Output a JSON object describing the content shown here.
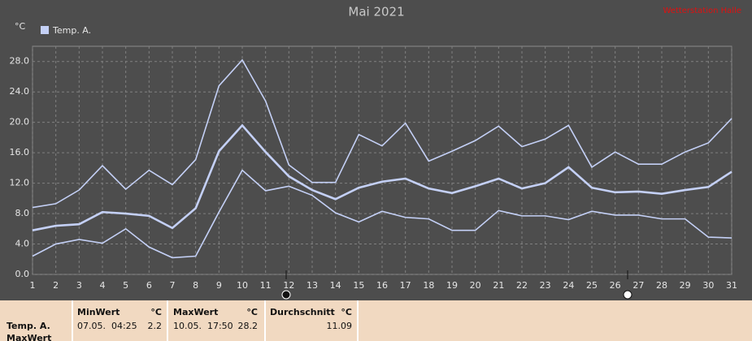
{
  "chart_data": {
    "type": "line",
    "title": "Mai 2021",
    "station": "Wetterstation Halle",
    "y_unit": "°C",
    "x": [
      1,
      2,
      3,
      4,
      5,
      6,
      7,
      8,
      9,
      10,
      11,
      12,
      13,
      14,
      15,
      16,
      17,
      18,
      19,
      20,
      21,
      22,
      23,
      24,
      25,
      26,
      27,
      28,
      29,
      30,
      31
    ],
    "series": [
      {
        "name": "Temp. A.",
        "color": "#c4d0f6",
        "values": [
          5.8,
          6.4,
          6.6,
          8.2,
          8.0,
          7.7,
          6.1,
          8.7,
          16.2,
          19.6,
          16.1,
          12.9,
          11.1,
          9.9,
          11.4,
          12.2,
          12.6,
          11.3,
          10.7,
          11.6,
          12.6,
          11.3,
          12.0,
          14.1,
          11.4,
          10.8,
          10.9,
          10.6,
          11.1,
          11.5,
          13.5
        ],
        "max": [
          8.8,
          9.3,
          11.1,
          14.3,
          11.2,
          13.7,
          11.8,
          15.1,
          24.8,
          28.2,
          22.8,
          14.4,
          12.1,
          12.1,
          18.4,
          16.9,
          19.9,
          14.9,
          16.2,
          17.6,
          19.5,
          16.8,
          17.8,
          19.6,
          14.1,
          16.1,
          14.5,
          14.5,
          16.1,
          17.3,
          20.5
        ],
        "min": [
          2.4,
          4.0,
          4.6,
          4.1,
          6.0,
          3.6,
          2.2,
          2.4,
          8.2,
          13.7,
          11.0,
          11.6,
          10.4,
          8.1,
          6.9,
          8.3,
          7.5,
          7.3,
          5.8,
          5.8,
          8.4,
          7.7,
          7.7,
          7.2,
          8.3,
          7.8,
          7.8,
          7.3,
          7.3,
          4.9,
          4.8
        ]
      }
    ],
    "xlim": [
      1,
      31
    ],
    "xticks": [
      1,
      2,
      3,
      4,
      5,
      6,
      7,
      8,
      9,
      10,
      11,
      12,
      13,
      14,
      15,
      16,
      17,
      18,
      19,
      20,
      21,
      22,
      23,
      24,
      25,
      26,
      27,
      28,
      29,
      30,
      31
    ],
    "ylim": [
      0,
      30
    ],
    "yticks": [
      {
        "value": 0,
        "label": "0.0"
      },
      {
        "value": 4,
        "label": "4.0"
      },
      {
        "value": 8,
        "label": "8.0"
      },
      {
        "value": 12,
        "label": "12.0"
      },
      {
        "value": 16,
        "label": "16.0"
      },
      {
        "value": 20,
        "label": "20.0"
      },
      {
        "value": 24,
        "label": "24.0"
      },
      {
        "value": 28,
        "label": "28.0"
      }
    ],
    "grid": true
  },
  "stats": {
    "row_label": "Temp. A.",
    "row_label_2": "MaxWert",
    "columns": [
      {
        "header": "MinWert",
        "unit": "°C",
        "time": "07.05.  04:25",
        "value": 2.2
      },
      {
        "header": "MaxWert",
        "unit": "°C",
        "time": "10.05.  17:50",
        "value": 28.2
      },
      {
        "header": "Durchschnitt",
        "unit": "°C",
        "value": 11.09
      }
    ]
  }
}
